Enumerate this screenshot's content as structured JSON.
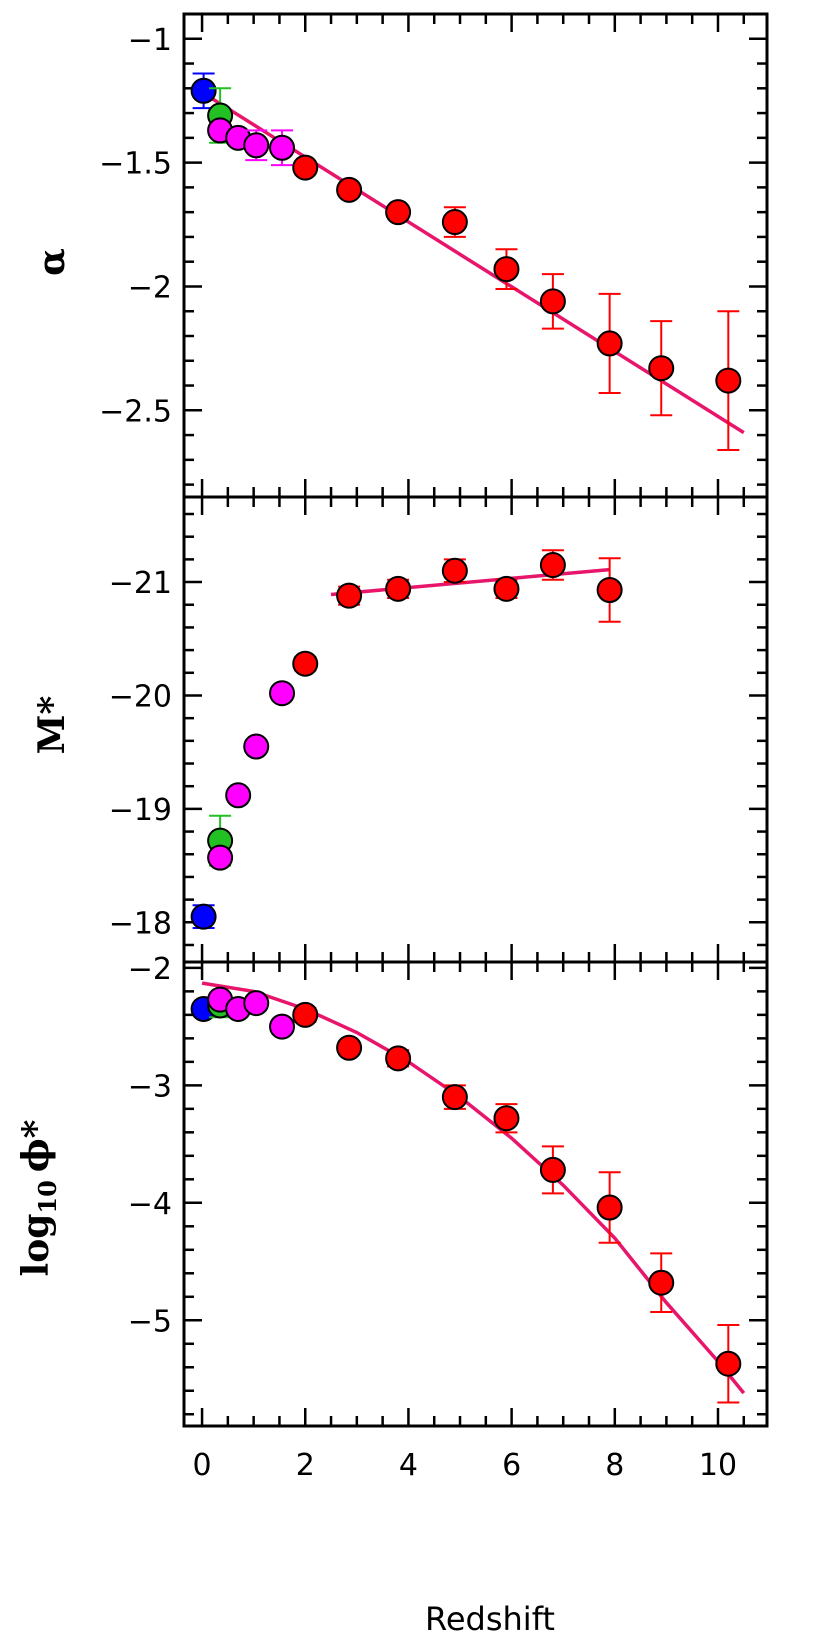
{
  "chart_data": {
    "type": "scatter",
    "xlabel": "Redshift",
    "x_ticks": [
      "0",
      "2",
      "4",
      "6",
      "8",
      "10"
    ],
    "xlim": [
      -0.35,
      10.95
    ],
    "colors": {
      "blue": "#0000ff",
      "green": "#22c022",
      "magenta": "#ff00ff",
      "red": "#ff0000",
      "fit": "#e8166b"
    },
    "panels": [
      {
        "id": "alpha",
        "ylabel": "α",
        "ylim": [
          -2.85,
          -0.9
        ],
        "y_ticks": [
          {
            "value": -1,
            "label": "−1"
          },
          {
            "value": -1.5,
            "label": "−1.5"
          },
          {
            "value": -2,
            "label": "−2"
          },
          {
            "value": -2.5,
            "label": "−2.5"
          }
        ],
        "points": [
          {
            "x": 0.03,
            "y": -1.21,
            "err": 0.07,
            "color": "blue"
          },
          {
            "x": 0.35,
            "y": -1.31,
            "err": 0.11,
            "color": "green"
          },
          {
            "x": 0.35,
            "y": -1.37,
            "err": 0.0,
            "color": "magenta"
          },
          {
            "x": 0.7,
            "y": -1.4,
            "err": 0.0,
            "color": "magenta"
          },
          {
            "x": 1.05,
            "y": -1.43,
            "err": 0.06,
            "color": "magenta"
          },
          {
            "x": 1.55,
            "y": -1.44,
            "err": 0.07,
            "color": "magenta"
          },
          {
            "x": 2.0,
            "y": -1.52,
            "err": 0.0,
            "color": "red"
          },
          {
            "x": 2.85,
            "y": -1.61,
            "err": 0.0,
            "color": "red"
          },
          {
            "x": 3.8,
            "y": -1.7,
            "err": 0.0,
            "color": "red"
          },
          {
            "x": 4.9,
            "y": -1.74,
            "err": 0.06,
            "color": "red"
          },
          {
            "x": 5.9,
            "y": -1.93,
            "err": 0.08,
            "color": "red"
          },
          {
            "x": 6.8,
            "y": -2.06,
            "err": 0.11,
            "color": "red"
          },
          {
            "x": 7.9,
            "y": -2.23,
            "err": 0.2,
            "color": "red"
          },
          {
            "x": 8.9,
            "y": -2.33,
            "err": 0.19,
            "color": "red"
          },
          {
            "x": 10.2,
            "y": -2.38,
            "err": 0.28,
            "color": "red"
          }
        ],
        "fit": [
          [
            0.03,
            -1.22
          ],
          [
            10.5,
            -2.59
          ]
        ]
      },
      {
        "id": "mstar",
        "ylabel": "M*",
        "ylim": [
          -17.65,
          -21.75
        ],
        "y_ticks": [
          {
            "value": -21,
            "label": "−21"
          },
          {
            "value": -20,
            "label": "−20"
          },
          {
            "value": -19,
            "label": "−19"
          },
          {
            "value": -18,
            "label": "−18"
          }
        ],
        "points": [
          {
            "x": 0.03,
            "y": -18.05,
            "err": 0.1,
            "color": "blue"
          },
          {
            "x": 0.35,
            "y": -18.72,
            "err": 0.22,
            "color": "green"
          },
          {
            "x": 0.35,
            "y": -18.57,
            "err": 0.0,
            "color": "magenta"
          },
          {
            "x": 0.7,
            "y": -19.12,
            "err": 0.0,
            "color": "magenta"
          },
          {
            "x": 1.05,
            "y": -19.55,
            "err": 0.0,
            "color": "magenta"
          },
          {
            "x": 1.55,
            "y": -20.02,
            "err": 0.0,
            "color": "magenta"
          },
          {
            "x": 2.0,
            "y": -20.28,
            "err": 0.06,
            "color": "red"
          },
          {
            "x": 2.85,
            "y": -20.88,
            "err": 0.08,
            "color": "red"
          },
          {
            "x": 3.8,
            "y": -20.94,
            "err": 0.08,
            "color": "red"
          },
          {
            "x": 4.9,
            "y": -21.1,
            "err": 0.1,
            "color": "red"
          },
          {
            "x": 5.9,
            "y": -20.94,
            "err": 0.08,
            "color": "red"
          },
          {
            "x": 6.8,
            "y": -21.15,
            "err": 0.13,
            "color": "red"
          },
          {
            "x": 7.9,
            "y": -20.93,
            "err": 0.28,
            "color": "red"
          }
        ],
        "fit": [
          [
            2.5,
            -20.89
          ],
          [
            7.9,
            -21.11
          ]
        ]
      },
      {
        "id": "phistar",
        "ylabel_main": "log",
        "ylabel_sub": "10",
        "ylabel_sym": "ϕ*",
        "ylim": [
          -5.9,
          -1.95
        ],
        "y_ticks": [
          {
            "value": -2,
            "label": "−2"
          },
          {
            "value": -3,
            "label": "−3"
          },
          {
            "value": -4,
            "label": "−4"
          },
          {
            "value": -5,
            "label": "−5"
          }
        ],
        "points": [
          {
            "x": 0.03,
            "y": -2.35,
            "err": 0.05,
            "color": "blue"
          },
          {
            "x": 0.35,
            "y": -2.32,
            "err": 0.1,
            "color": "green"
          },
          {
            "x": 0.35,
            "y": -2.27,
            "err": 0.0,
            "color": "magenta"
          },
          {
            "x": 0.7,
            "y": -2.35,
            "err": 0.0,
            "color": "magenta"
          },
          {
            "x": 1.05,
            "y": -2.3,
            "err": 0.0,
            "color": "magenta"
          },
          {
            "x": 1.55,
            "y": -2.5,
            "err": 0.0,
            "color": "magenta"
          },
          {
            "x": 2.0,
            "y": -2.4,
            "err": 0.06,
            "color": "red"
          },
          {
            "x": 2.85,
            "y": -2.68,
            "err": 0.05,
            "color": "red"
          },
          {
            "x": 3.8,
            "y": -2.77,
            "err": 0.07,
            "color": "red"
          },
          {
            "x": 4.9,
            "y": -3.1,
            "err": 0.1,
            "color": "red"
          },
          {
            "x": 5.9,
            "y": -3.28,
            "err": 0.12,
            "color": "red"
          },
          {
            "x": 6.8,
            "y": -3.72,
            "err": 0.2,
            "color": "red"
          },
          {
            "x": 7.9,
            "y": -4.04,
            "err": 0.3,
            "color": "red"
          },
          {
            "x": 8.9,
            "y": -4.68,
            "err": 0.25,
            "color": "red"
          },
          {
            "x": 10.2,
            "y": -5.37,
            "err": 0.33,
            "color": "red"
          }
        ],
        "fit": [
          [
            0.0,
            -2.13
          ],
          [
            1.0,
            -2.2
          ],
          [
            2.0,
            -2.35
          ],
          [
            3.0,
            -2.55
          ],
          [
            4.0,
            -2.8
          ],
          [
            5.0,
            -3.1
          ],
          [
            6.0,
            -3.45
          ],
          [
            7.0,
            -3.85
          ],
          [
            8.0,
            -4.3
          ],
          [
            9.0,
            -4.85
          ],
          [
            10.0,
            -5.35
          ],
          [
            10.5,
            -5.62
          ]
        ]
      }
    ]
  }
}
